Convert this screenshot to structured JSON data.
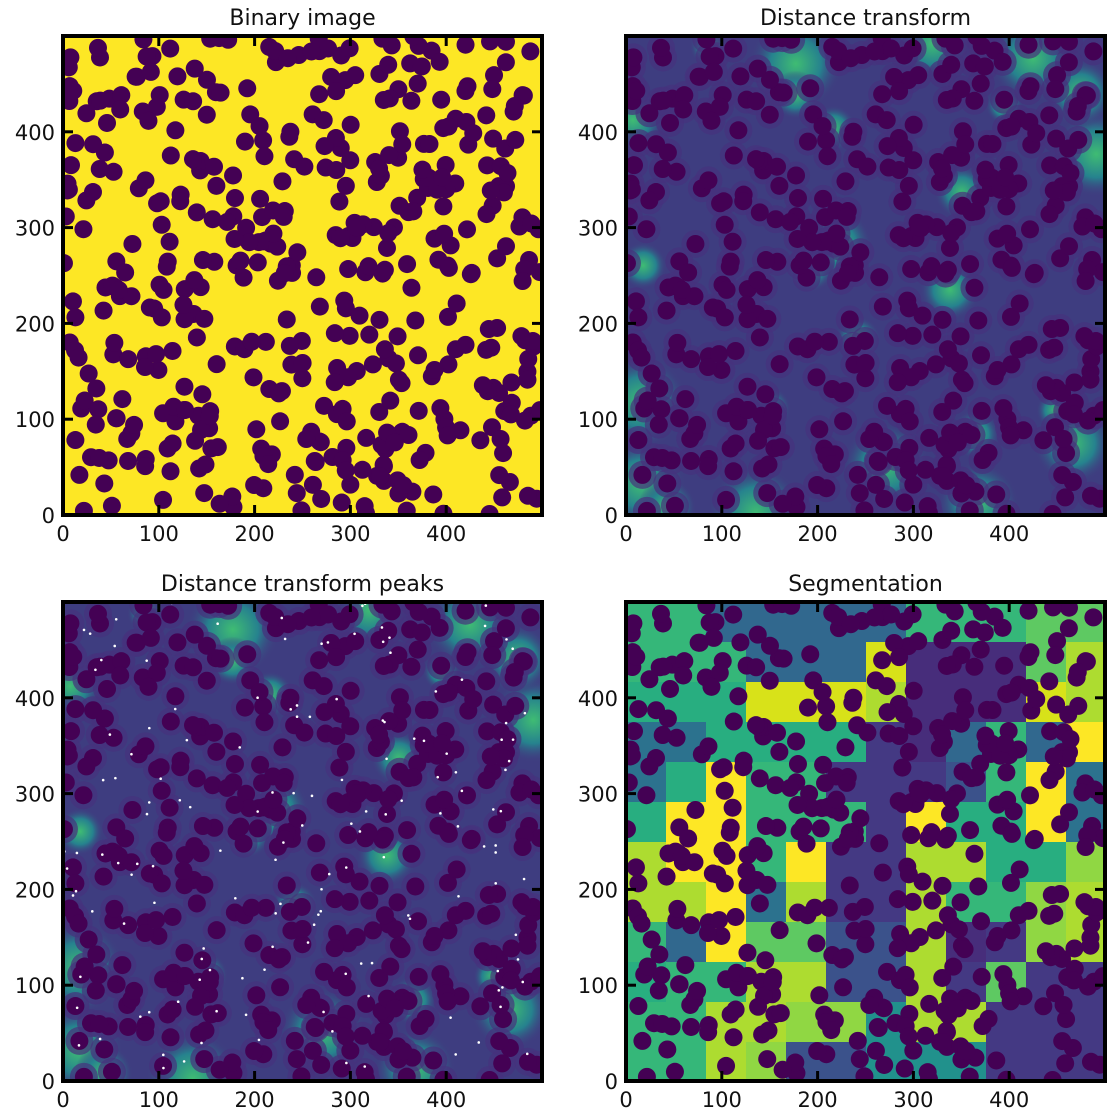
{
  "figure": {
    "colormap": "viridis",
    "colors": {
      "dark": "#440154",
      "bright": "#fde725",
      "peak_marker": "#ffffff",
      "axes": "#000000"
    }
  },
  "chart_data": [
    {
      "id": "binary",
      "type": "heatmap",
      "title": "Binary image",
      "xlabel": "",
      "ylabel": "",
      "xlim": [
        0,
        500
      ],
      "ylim": [
        0,
        500
      ],
      "xticks": [
        0,
        100,
        200,
        300,
        400
      ],
      "yticks": [
        0,
        100,
        200,
        300,
        400
      ],
      "grid": false,
      "content": "binary mask: dark circular particles on bright background"
    },
    {
      "id": "dist",
      "type": "heatmap",
      "title": "Distance transform",
      "xlabel": "",
      "ylabel": "",
      "xlim": [
        0,
        500
      ],
      "ylim": [
        0,
        500
      ],
      "xticks": [
        0,
        100,
        200,
        300,
        400
      ],
      "yticks": [
        0,
        100,
        200,
        300,
        400
      ],
      "grid": false,
      "content": "distance transform of background; brighter away from particles"
    },
    {
      "id": "peaks",
      "type": "heatmap",
      "title": "Distance transform peaks",
      "xlabel": "",
      "ylabel": "",
      "xlim": [
        0,
        500
      ],
      "ylim": [
        0,
        500
      ],
      "xticks": [
        0,
        100,
        200,
        300,
        400
      ],
      "yticks": [
        0,
        100,
        200,
        300,
        400
      ],
      "grid": false,
      "content": "distance transform with local maxima marked as white dots"
    },
    {
      "id": "seg",
      "type": "heatmap",
      "title": "Segmentation",
      "xlabel": "",
      "ylabel": "",
      "xlim": [
        0,
        500
      ],
      "ylim": [
        0,
        500
      ],
      "xticks": [
        0,
        100,
        200,
        300,
        400
      ],
      "yticks": [
        0,
        100,
        200,
        300,
        400
      ],
      "grid": false,
      "content": "watershed labels of background regions colored by label; particles dark"
    }
  ]
}
